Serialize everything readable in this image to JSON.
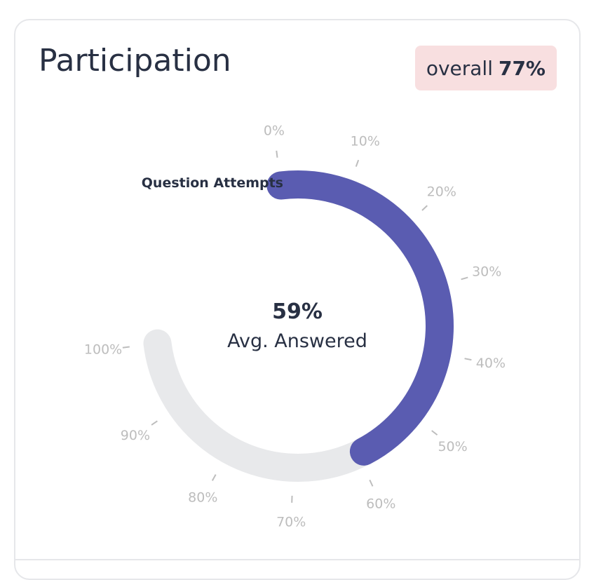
{
  "card": {
    "title": "Participation",
    "badge": {
      "prefix": "overall",
      "value": "77%"
    }
  },
  "chart_data": {
    "type": "radial-gauge",
    "series": [
      {
        "name": "Question Attempts",
        "value": 59
      }
    ],
    "center": {
      "value_label": "59%",
      "caption": "Avg. Answered"
    },
    "range": [
      0,
      100
    ],
    "ticks": [
      "0%",
      "10%",
      "20%",
      "30%",
      "40%",
      "50%",
      "60%",
      "70%",
      "80%",
      "90%",
      "100%"
    ],
    "colors": {
      "fill": "#5a5cb1",
      "track": "#e8e9eb",
      "tick": "#bdbdbd"
    }
  }
}
